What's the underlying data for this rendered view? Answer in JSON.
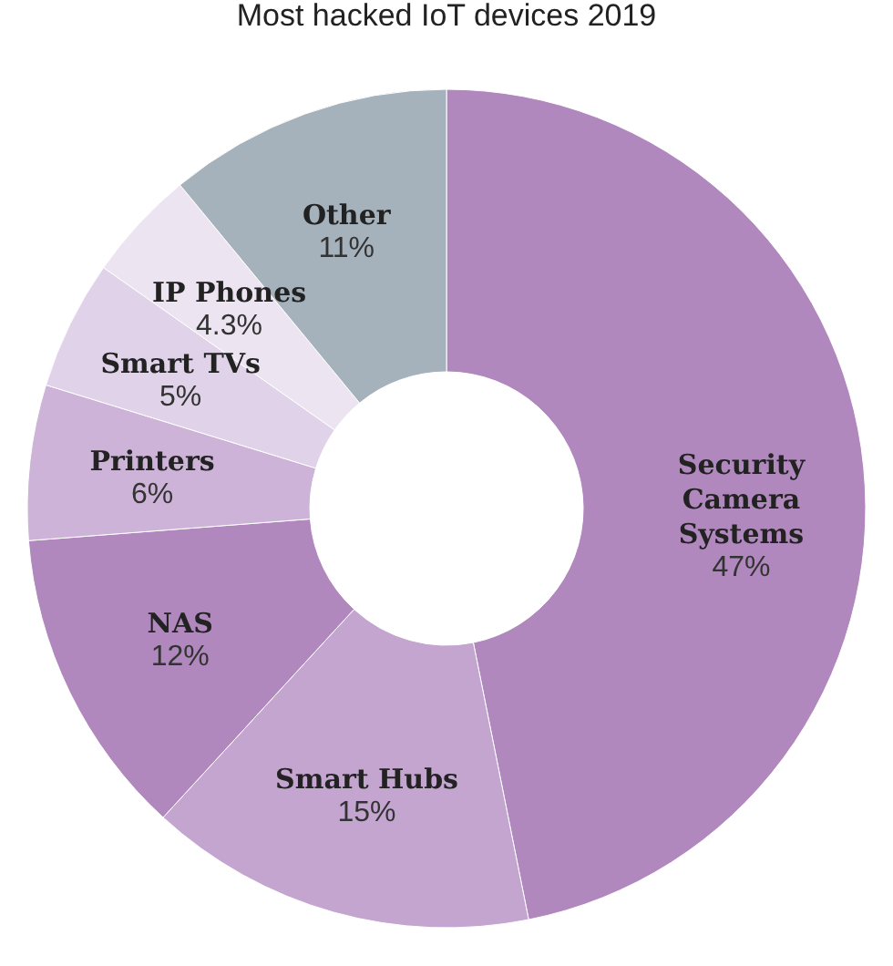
{
  "chart_data": {
    "type": "donut",
    "title": "Most hacked IoT devices 2019",
    "categories": [
      "Security Camera Systems",
      "Smart Hubs",
      "NAS",
      "Printers",
      "Smart TVs",
      "IP Phones",
      "Other"
    ],
    "values": [
      47,
      15,
      12,
      6,
      5,
      4.3,
      11
    ],
    "value_labels": [
      "47%",
      "15%",
      "12%",
      "6%",
      "5%",
      "4.3%",
      "11%"
    ],
    "colors": [
      "#b088bd",
      "#c3a5d0",
      "#b088bd",
      "#cdb3d8",
      "#e0d3e9",
      "#ede4f1",
      "#a5b2bb"
    ]
  }
}
